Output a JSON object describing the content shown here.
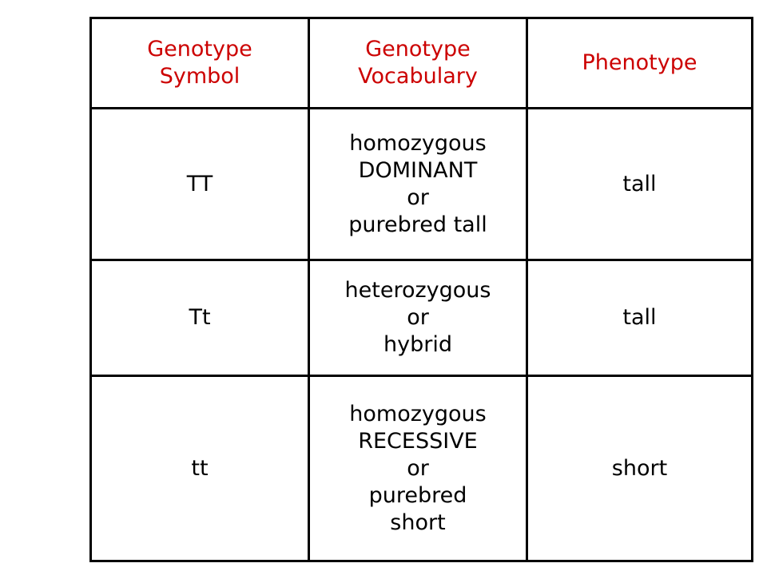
{
  "table": {
    "header": [
      [
        "Genotype",
        "Symbol"
      ],
      [
        "Genotype",
        "Vocabulary"
      ],
      [
        "Phenotype"
      ]
    ],
    "rows": [
      [
        [
          "TT"
        ],
        [
          "homozygous",
          "DOMINANT",
          "or",
          "purebred tall"
        ],
        [
          "tall"
        ]
      ],
      [
        [
          "Tt"
        ],
        [
          "heterozygous",
          "or",
          "hybrid"
        ],
        [
          "tall"
        ]
      ],
      [
        [
          "tt"
        ],
        [
          "homozygous",
          "RECESSIVE",
          "or",
          "purebred",
          "short"
        ],
        [
          "short"
        ]
      ]
    ]
  }
}
